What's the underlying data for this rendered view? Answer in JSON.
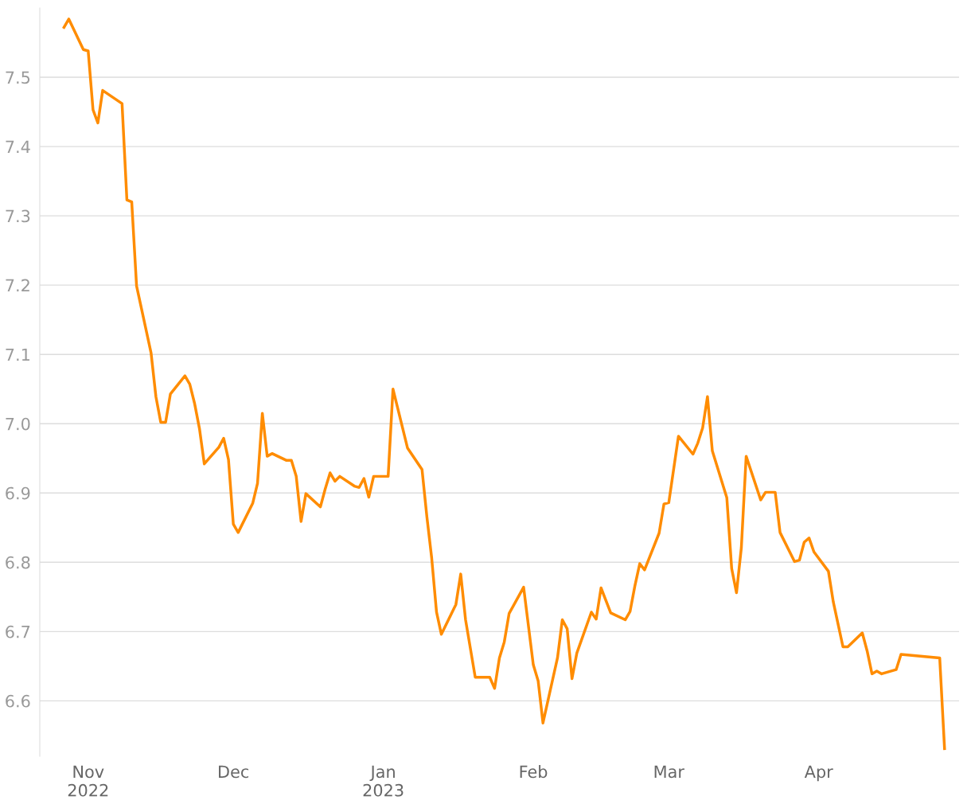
{
  "chart_data": {
    "type": "line",
    "color": "#ff8c00",
    "grid": "y",
    "line_style": "solid",
    "marker": "none",
    "x": [
      "2022-10-27",
      "2022-10-28",
      "2022-10-31",
      "2022-11-01",
      "2022-11-02",
      "2022-11-03",
      "2022-11-04",
      "2022-11-08",
      "2022-11-09",
      "2022-11-10",
      "2022-11-11",
      "2022-11-14",
      "2022-11-15",
      "2022-11-16",
      "2022-11-17",
      "2022-11-18",
      "2022-11-21",
      "2022-11-22",
      "2022-11-23",
      "2022-11-24",
      "2022-11-25",
      "2022-11-28",
      "2022-11-29",
      "2022-11-30",
      "2022-12-01",
      "2022-12-02",
      "2022-12-05",
      "2022-12-06",
      "2022-12-07",
      "2022-12-08",
      "2022-12-09",
      "2022-12-12",
      "2022-12-13",
      "2022-12-14",
      "2022-12-15",
      "2022-12-16",
      "2022-12-19",
      "2022-12-20",
      "2022-12-21",
      "2022-12-22",
      "2022-12-23",
      "2022-12-26",
      "2022-12-27",
      "2022-12-28",
      "2022-12-29",
      "2022-12-30",
      "2023-01-02",
      "2023-01-03",
      "2023-01-06",
      "2023-01-09",
      "2023-01-10",
      "2023-01-11",
      "2023-01-12",
      "2023-01-13",
      "2023-01-16",
      "2023-01-17",
      "2023-01-18",
      "2023-01-20",
      "2023-01-23",
      "2023-01-24",
      "2023-01-25",
      "2023-01-26",
      "2023-01-27",
      "2023-01-30",
      "2023-02-01",
      "2023-02-02",
      "2023-02-03",
      "2023-02-06",
      "2023-02-07",
      "2023-02-08",
      "2023-02-09",
      "2023-02-10",
      "2023-02-13",
      "2023-02-14",
      "2023-02-15",
      "2023-02-17",
      "2023-02-20",
      "2023-02-21",
      "2023-02-22",
      "2023-02-23",
      "2023-02-24",
      "2023-02-27",
      "2023-02-28",
      "2023-03-01",
      "2023-03-02",
      "2023-03-03",
      "2023-03-06",
      "2023-03-07",
      "2023-03-08",
      "2023-03-09",
      "2023-03-10",
      "2023-03-13",
      "2023-03-14",
      "2023-03-15",
      "2023-03-16",
      "2023-03-17",
      "2023-03-20",
      "2023-03-21",
      "2023-03-23",
      "2023-03-24",
      "2023-03-27",
      "2023-03-28",
      "2023-03-29",
      "2023-03-30",
      "2023-03-31",
      "2023-04-03",
      "2023-04-04",
      "2023-04-06",
      "2023-04-07",
      "2023-04-10",
      "2023-04-11",
      "2023-04-12",
      "2023-04-13",
      "2023-04-14",
      "2023-04-17",
      "2023-04-18",
      "2023-04-26",
      "2023-04-27"
    ],
    "values": [
      7.572,
      7.584,
      7.54,
      7.538,
      7.453,
      7.434,
      7.481,
      7.462,
      7.323,
      7.32,
      7.199,
      7.102,
      7.039,
      7.002,
      7.002,
      7.043,
      7.069,
      7.057,
      7.029,
      6.993,
      6.942,
      6.966,
      6.979,
      6.948,
      6.855,
      6.843,
      6.885,
      6.914,
      7.015,
      6.953,
      6.957,
      6.947,
      6.947,
      6.924,
      6.859,
      6.899,
      6.88,
      6.906,
      6.929,
      6.917,
      6.924,
      6.91,
      6.908,
      6.921,
      6.894,
      6.924,
      6.924,
      7.05,
      6.965,
      6.934,
      6.866,
      6.806,
      6.728,
      6.696,
      6.739,
      6.783,
      6.717,
      6.634,
      6.634,
      6.618,
      6.662,
      6.685,
      6.726,
      6.764,
      6.652,
      6.629,
      6.568,
      6.662,
      6.717,
      6.704,
      6.632,
      6.669,
      6.728,
      6.718,
      6.763,
      6.727,
      6.717,
      6.729,
      6.766,
      6.798,
      6.789,
      6.842,
      6.884,
      6.886,
      6.934,
      6.982,
      6.956,
      6.972,
      6.994,
      7.039,
      6.961,
      6.893,
      6.791,
      6.756,
      6.821,
      6.953,
      6.89,
      6.901,
      6.901,
      6.843,
      6.801,
      6.803,
      6.829,
      6.835,
      6.815,
      6.787,
      6.743,
      6.678,
      6.678,
      6.698,
      6.672,
      6.639,
      6.643,
      6.639,
      6.645,
      6.667,
      6.662,
      6.531
    ],
    "xlim": [
      "2022-10-22",
      "2023-04-30"
    ],
    "xticks": [
      {
        "value": "2022-11-01",
        "label": "Nov\n2022"
      },
      {
        "value": "2022-12-01",
        "label": "Dec"
      },
      {
        "value": "2023-01-01",
        "label": "Jan\n2023"
      },
      {
        "value": "2023-02-01",
        "label": "Feb"
      },
      {
        "value": "2023-03-01",
        "label": "Mar"
      },
      {
        "value": "2023-04-01",
        "label": "Apr"
      }
    ],
    "ylim": [
      6.52,
      7.6
    ],
    "yticks": [
      6.6,
      6.7,
      6.8,
      6.9,
      {
        "value": 7,
        "label": "7.0"
      },
      7.1,
      7.2,
      7.3,
      7.4,
      7.5
    ]
  }
}
